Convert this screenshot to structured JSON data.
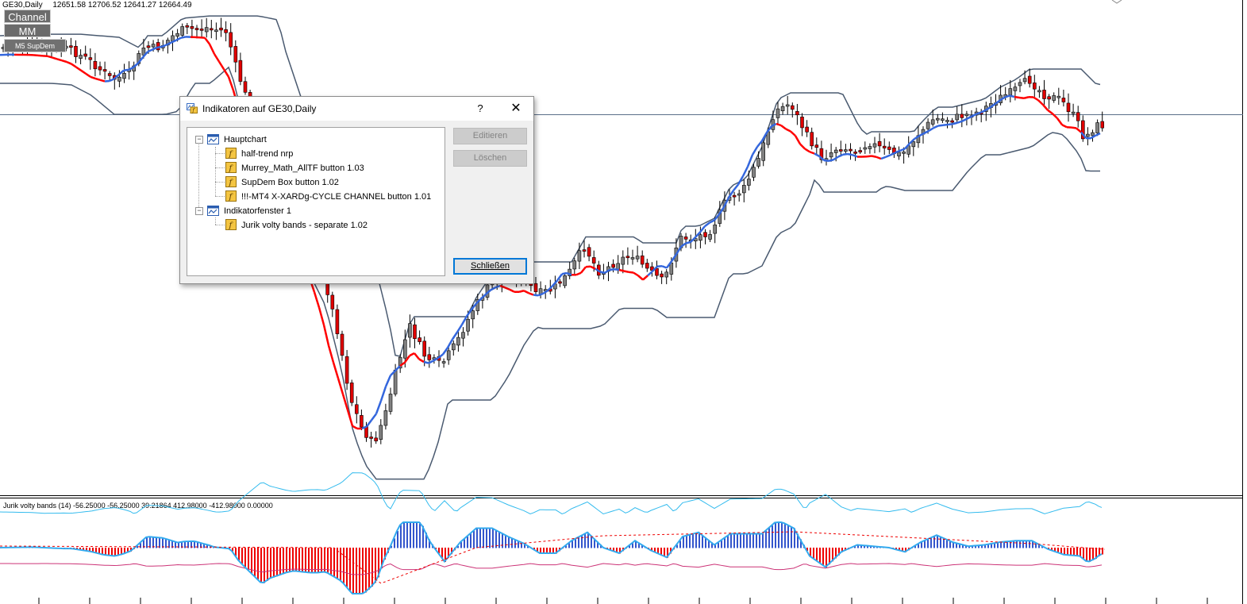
{
  "chart": {
    "symbol_header": "GE30,Daily",
    "ohlc": "12651.58 12706.52 12641.27 12664.49",
    "overlay_buttons": [
      "Channel",
      "MM",
      "M5 SupDem"
    ],
    "subwindow_label": "Jurik volty bands (14) -56.25000 -56.25000 39.21864 412.98000 -412.98000 0.00000",
    "colors": {
      "candle_bull": "#808080",
      "candle_bear": "#e00000",
      "halftrend_up": "#3366dd",
      "halftrend_down": "#ff0000",
      "channel": "#4a5a70",
      "jurik_up_band": "#33bbee",
      "jurik_low_band": "#cc3377",
      "hist_pos": "#3355cc",
      "hist_neg": "#ee0000"
    }
  },
  "dialog": {
    "title": "Indikatoren auf GE30,Daily",
    "help_label": "?",
    "close_icon": "close-icon",
    "tree": {
      "main_chart": {
        "label": "Hauptchart",
        "items": [
          "half-trend nrp",
          "Murrey_Math_AllTF button 1.03",
          "SupDem Box button 1.02",
          "!!!-MT4 X-XARDg-CYCLE CHANNEL button 1.01"
        ]
      },
      "indicator_window": {
        "label": "Indikatorfenster 1",
        "items": [
          "Jurik volty bands - separate 1.02"
        ]
      }
    },
    "buttons": {
      "edit": "Editieren",
      "delete": "Löschen",
      "close": "Schließen"
    }
  }
}
